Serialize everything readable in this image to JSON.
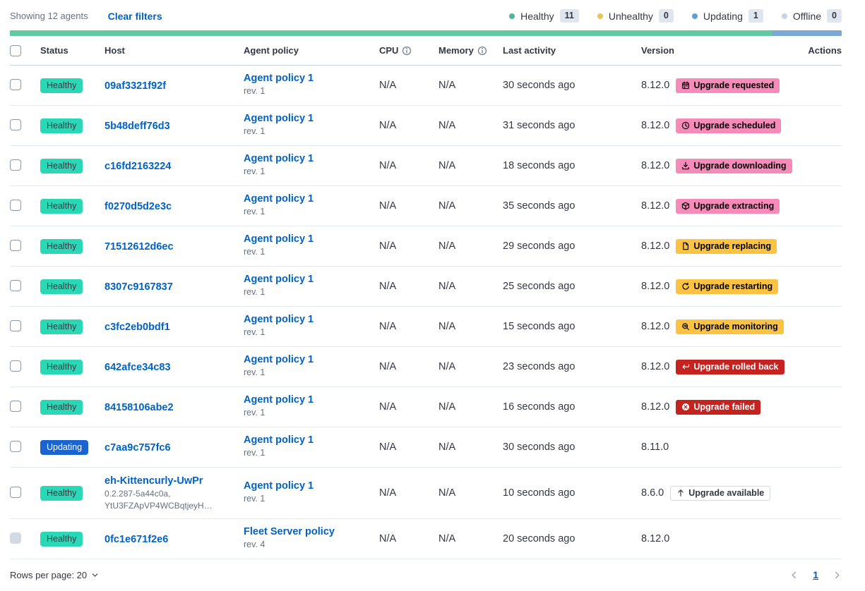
{
  "toolbar": {
    "showing": "Showing 12 agents",
    "clear_filters": "Clear filters",
    "legend": [
      {
        "label": "Healthy",
        "count": "11",
        "color": "#54B399"
      },
      {
        "label": "Unhealthy",
        "count": "0",
        "color": "#E2C75B"
      },
      {
        "label": "Updating",
        "count": "1",
        "color": "#5F9ED8"
      },
      {
        "label": "Offline",
        "count": "0",
        "color": "#CBD3E0"
      }
    ]
  },
  "status_bar": {
    "segments": [
      {
        "label": "healthy",
        "color": "#62C9A2",
        "fraction": 0.9167
      },
      {
        "label": "updating",
        "color": "#7BA9D4",
        "fraction": 0.0833
      }
    ]
  },
  "table": {
    "headers": {
      "status": "Status",
      "host": "Host",
      "policy": "Agent policy",
      "cpu": "CPU",
      "memory": "Memory",
      "last_activity": "Last activity",
      "version": "Version",
      "actions": "Actions"
    },
    "rows": [
      {
        "status": "Healthy",
        "status_bg": "#2BD8B6",
        "status_fg": "#343741",
        "host": "09af3321f92f",
        "host_sub": [],
        "policy": "Agent policy 1",
        "policy_rev": "rev. 1",
        "policy_locked": false,
        "cpu": "N/A",
        "memory": "N/A",
        "last_activity": "30 seconds ago",
        "version": "8.12.0",
        "version_info": false,
        "badge": {
          "label": "Upgrade requested",
          "icon": "calendar-icon",
          "bg": "#F68AB9",
          "fg": "#000000",
          "hollow": false
        },
        "badge_info": true,
        "checkbox_disabled": false
      },
      {
        "status": "Healthy",
        "status_bg": "#2BD8B6",
        "status_fg": "#343741",
        "host": "5b48deff76d3",
        "host_sub": [],
        "policy": "Agent policy 1",
        "policy_rev": "rev. 1",
        "policy_locked": false,
        "cpu": "N/A",
        "memory": "N/A",
        "last_activity": "31 seconds ago",
        "version": "8.12.0",
        "version_info": false,
        "badge": {
          "label": "Upgrade scheduled",
          "icon": "clock-icon",
          "bg": "#F68AB9",
          "fg": "#000000",
          "hollow": false
        },
        "badge_info": true,
        "checkbox_disabled": false
      },
      {
        "status": "Healthy",
        "status_bg": "#2BD8B6",
        "status_fg": "#343741",
        "host": "c16fd2163224",
        "host_sub": [],
        "policy": "Agent policy 1",
        "policy_rev": "rev. 1",
        "policy_locked": false,
        "cpu": "N/A",
        "memory": "N/A",
        "last_activity": "18 seconds ago",
        "version": "8.12.0",
        "version_info": false,
        "badge": {
          "label": "Upgrade downloading",
          "icon": "download-icon",
          "bg": "#F68AB9",
          "fg": "#000000",
          "hollow": false
        },
        "badge_info": true,
        "checkbox_disabled": false
      },
      {
        "status": "Healthy",
        "status_bg": "#2BD8B6",
        "status_fg": "#343741",
        "host": "f0270d5d2e3c",
        "host_sub": [],
        "policy": "Agent policy 1",
        "policy_rev": "rev. 1",
        "policy_locked": false,
        "cpu": "N/A",
        "memory": "N/A",
        "last_activity": "35 seconds ago",
        "version": "8.12.0",
        "version_info": false,
        "badge": {
          "label": "Upgrade extracting",
          "icon": "package-icon",
          "bg": "#F68AB9",
          "fg": "#000000",
          "hollow": false
        },
        "badge_info": true,
        "checkbox_disabled": false
      },
      {
        "status": "Healthy",
        "status_bg": "#2BD8B6",
        "status_fg": "#343741",
        "host": "71512612d6ec",
        "host_sub": [],
        "policy": "Agent policy 1",
        "policy_rev": "rev. 1",
        "policy_locked": false,
        "cpu": "N/A",
        "memory": "N/A",
        "last_activity": "29 seconds ago",
        "version": "8.12.0",
        "version_info": false,
        "badge": {
          "label": "Upgrade replacing",
          "icon": "document-icon",
          "bg": "#FCC343",
          "fg": "#000000",
          "hollow": false
        },
        "badge_info": true,
        "checkbox_disabled": false
      },
      {
        "status": "Healthy",
        "status_bg": "#2BD8B6",
        "status_fg": "#343741",
        "host": "8307c9167837",
        "host_sub": [],
        "policy": "Agent policy 1",
        "policy_rev": "rev. 1",
        "policy_locked": false,
        "cpu": "N/A",
        "memory": "N/A",
        "last_activity": "25 seconds ago",
        "version": "8.12.0",
        "version_info": false,
        "badge": {
          "label": "Upgrade restarting",
          "icon": "refresh-icon",
          "bg": "#FCC343",
          "fg": "#000000",
          "hollow": false
        },
        "badge_info": true,
        "checkbox_disabled": false
      },
      {
        "status": "Healthy",
        "status_bg": "#2BD8B6",
        "status_fg": "#343741",
        "host": "c3fc2eb0bdf1",
        "host_sub": [],
        "policy": "Agent policy 1",
        "policy_rev": "rev. 1",
        "policy_locked": false,
        "cpu": "N/A",
        "memory": "N/A",
        "last_activity": "15 seconds ago",
        "version": "8.12.0",
        "version_info": false,
        "badge": {
          "label": "Upgrade monitoring",
          "icon": "inspect-icon",
          "bg": "#FCC343",
          "fg": "#000000",
          "hollow": false
        },
        "badge_info": true,
        "checkbox_disabled": false
      },
      {
        "status": "Healthy",
        "status_bg": "#2BD8B6",
        "status_fg": "#343741",
        "host": "642afce34c83",
        "host_sub": [],
        "policy": "Agent policy 1",
        "policy_rev": "rev. 1",
        "policy_locked": false,
        "cpu": "N/A",
        "memory": "N/A",
        "last_activity": "23 seconds ago",
        "version": "8.12.0",
        "version_info": false,
        "badge": {
          "label": "Upgrade rolled back",
          "icon": "return-arrow-icon",
          "bg": "#C4231F",
          "fg": "#FFFFFF",
          "hollow": false
        },
        "badge_info": true,
        "checkbox_disabled": false
      },
      {
        "status": "Healthy",
        "status_bg": "#2BD8B6",
        "status_fg": "#343741",
        "host": "84158106abe2",
        "host_sub": [],
        "policy": "Agent policy 1",
        "policy_rev": "rev. 1",
        "policy_locked": false,
        "cpu": "N/A",
        "memory": "N/A",
        "last_activity": "16 seconds ago",
        "version": "8.12.0",
        "version_info": false,
        "badge": {
          "label": "Upgrade failed",
          "icon": "error-icon",
          "bg": "#C4231F",
          "fg": "#FFFFFF",
          "hollow": false
        },
        "badge_info": true,
        "checkbox_disabled": false
      },
      {
        "status": "Updating",
        "status_bg": "#1B64D0",
        "status_fg": "#FFFFFF",
        "host": "c7aa9c757fc6",
        "host_sub": [],
        "policy": "Agent policy 1",
        "policy_rev": "rev. 1",
        "policy_locked": false,
        "cpu": "N/A",
        "memory": "N/A",
        "last_activity": "30 seconds ago",
        "version": "8.11.0",
        "version_info": true,
        "badge": null,
        "badge_info": false,
        "checkbox_disabled": false
      },
      {
        "status": "Healthy",
        "status_bg": "#2BD8B6",
        "status_fg": "#343741",
        "host": "eh-Kittencurly-UwPr",
        "host_sub": [
          "0.2.287-5a44c0a,",
          "YtU3FZApVP4WCBqtjeyH…"
        ],
        "policy": "Agent policy 1",
        "policy_rev": "rev. 1",
        "policy_locked": false,
        "cpu": "N/A",
        "memory": "N/A",
        "last_activity": "10 seconds ago",
        "version": "8.6.0",
        "version_info": false,
        "badge": {
          "label": "Upgrade available",
          "icon": "arrow-up-icon",
          "bg": "#FFFFFF",
          "fg": "#343741",
          "hollow": true
        },
        "badge_info": false,
        "checkbox_disabled": false
      },
      {
        "status": "Healthy",
        "status_bg": "#2BD8B6",
        "status_fg": "#343741",
        "host": "0fc1e671f2e6",
        "host_sub": [],
        "policy": "Fleet Server policy",
        "policy_rev": "rev. 4",
        "policy_locked": true,
        "cpu": "N/A",
        "memory": "N/A",
        "last_activity": "20 seconds ago",
        "version": "8.12.0",
        "version_info": false,
        "badge": null,
        "badge_info": false,
        "checkbox_disabled": true
      }
    ]
  },
  "footer": {
    "rows_per_page": "Rows per page: 20",
    "page": "1"
  }
}
